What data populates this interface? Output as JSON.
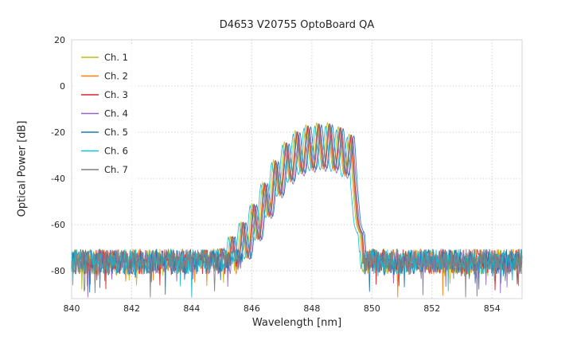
{
  "chart_data": {
    "type": "line",
    "title": "D4653 V20755 OptoBoard QA",
    "xlabel": "Wavelength [nm]",
    "ylabel": "Optical Power [dB]",
    "xlim": [
      840,
      855
    ],
    "ylim": [
      -92,
      20
    ],
    "x_ticks": [
      840,
      842,
      844,
      846,
      848,
      850,
      852,
      854
    ],
    "y_ticks": [
      20,
      0,
      -20,
      -40,
      -60,
      -80
    ],
    "grid": true,
    "legend_position": "upper-left",
    "series": [
      {
        "name": "Ch. 1",
        "color": "#bcbd22",
        "offset_nm": -0.04
      },
      {
        "name": "Ch. 2",
        "color": "#ff7f0e",
        "offset_nm": 0.0
      },
      {
        "name": "Ch. 3",
        "color": "#d62728",
        "offset_nm": 0.04
      },
      {
        "name": "Ch. 4",
        "color": "#9467bd",
        "offset_nm": 0.08
      },
      {
        "name": "Ch. 5",
        "color": "#1f77b4",
        "offset_nm": 0.12
      },
      {
        "name": "Ch. 6",
        "color": "#17becf",
        "offset_nm": -0.1
      },
      {
        "name": "Ch. 7",
        "color": "#7f7f7f",
        "offset_nm": 0.02
      }
    ],
    "spectrum_model": {
      "noise_floor_db": -76,
      "noise_spread_db": 11,
      "mode_spacing_nm": 0.36,
      "mode_dip_db": 19,
      "peak_db": -17,
      "peak_wavelength_nm": 848.2,
      "envelope_points": [
        [
          840.0,
          -76
        ],
        [
          844.5,
          -74
        ],
        [
          845.0,
          -70
        ],
        [
          845.4,
          -64
        ],
        [
          845.8,
          -57
        ],
        [
          846.2,
          -48
        ],
        [
          846.6,
          -37
        ],
        [
          847.0,
          -27
        ],
        [
          847.4,
          -21
        ],
        [
          847.8,
          -18
        ],
        [
          848.2,
          -17
        ],
        [
          848.6,
          -17
        ],
        [
          849.0,
          -19
        ],
        [
          849.3,
          -22
        ],
        [
          849.45,
          -32
        ],
        [
          849.6,
          -60
        ],
        [
          849.75,
          -76
        ],
        [
          855.0,
          -76
        ]
      ]
    }
  }
}
